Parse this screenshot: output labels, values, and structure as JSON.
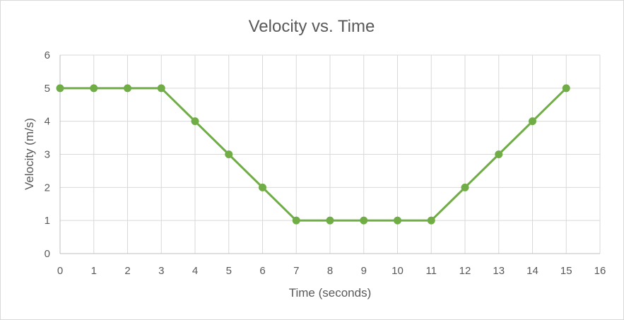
{
  "chart_data": {
    "type": "line",
    "title": "Velocity vs. Time",
    "xlabel": "Time (seconds)",
    "ylabel": "Velocity (m/s)",
    "xlim": [
      0,
      16
    ],
    "ylim": [
      0,
      6
    ],
    "xticks": [
      0,
      1,
      2,
      3,
      4,
      5,
      6,
      7,
      8,
      9,
      10,
      11,
      12,
      13,
      14,
      15,
      16
    ],
    "yticks": [
      0,
      1,
      2,
      3,
      4,
      5,
      6
    ],
    "grid": true,
    "legend": "none",
    "series": [
      {
        "color": "#70ad47",
        "x": [
          0,
          1,
          2,
          3,
          4,
          5,
          6,
          7,
          8,
          9,
          10,
          11,
          12,
          13,
          14,
          15
        ],
        "y": [
          5,
          5,
          5,
          5,
          4,
          3,
          2,
          1,
          1,
          1,
          1,
          1,
          2,
          3,
          4,
          5
        ]
      }
    ]
  }
}
